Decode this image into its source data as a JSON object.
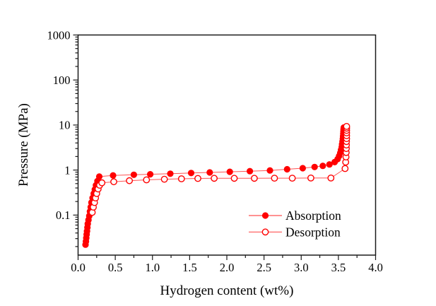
{
  "figure": {
    "background": "#ffffff"
  },
  "chart_data": {
    "type": "line",
    "subtype": "scatter-line pressure-composition isotherm",
    "title": "",
    "xlabel": "Hydrogen content (wt%)",
    "ylabel": "Pressure (MPa)",
    "x_scale": "linear",
    "y_scale": "log",
    "xlim": [
      0.0,
      4.0
    ],
    "ylim": [
      0.0129,
      1000
    ],
    "x_major_ticks": [
      0.0,
      0.5,
      1.0,
      1.5,
      2.0,
      2.5,
      3.0,
      3.5,
      4.0
    ],
    "x_tick_labels": [
      "0.0",
      "0.5",
      "1.0",
      "1.5",
      "2.0",
      "2.5",
      "3.0",
      "3.5",
      "4.0"
    ],
    "x_minor_step": 0.25,
    "y_major_ticks": [
      1000,
      100,
      10,
      1,
      0.1
    ],
    "y_tick_labels": [
      "1000",
      "100",
      "10",
      "1",
      "0.1"
    ],
    "grid": false,
    "legend_position": "inside-lower-right",
    "colors": {
      "series": "#ff0000",
      "line": "#ff5252",
      "axis": "#1a1a1a",
      "text": "#000000",
      "open_marker_fill": "#ffffff"
    },
    "series": [
      {
        "name": "Absorption",
        "marker": "filled-circle",
        "color": "#ff0000",
        "points": [
          [
            0.1,
            0.022
          ],
          [
            0.105,
            0.026
          ],
          [
            0.11,
            0.031
          ],
          [
            0.115,
            0.037
          ],
          [
            0.12,
            0.044
          ],
          [
            0.125,
            0.053
          ],
          [
            0.13,
            0.064
          ],
          [
            0.14,
            0.078
          ],
          [
            0.15,
            0.096
          ],
          [
            0.16,
            0.12
          ],
          [
            0.17,
            0.15
          ],
          [
            0.18,
            0.19
          ],
          [
            0.195,
            0.24
          ],
          [
            0.21,
            0.3
          ],
          [
            0.225,
            0.37
          ],
          [
            0.24,
            0.46
          ],
          [
            0.26,
            0.57
          ],
          [
            0.285,
            0.715
          ],
          [
            0.47,
            0.76
          ],
          [
            0.75,
            0.785
          ],
          [
            0.97,
            0.805
          ],
          [
            1.24,
            0.83
          ],
          [
            1.52,
            0.86
          ],
          [
            1.77,
            0.885
          ],
          [
            2.04,
            0.915
          ],
          [
            2.31,
            0.945
          ],
          [
            2.58,
            0.98
          ],
          [
            2.81,
            1.04
          ],
          [
            3.02,
            1.1
          ],
          [
            3.18,
            1.17
          ],
          [
            3.29,
            1.24
          ],
          [
            3.38,
            1.33
          ],
          [
            3.45,
            1.5
          ],
          [
            3.49,
            1.75
          ],
          [
            3.51,
            2.05
          ],
          [
            3.525,
            2.4
          ],
          [
            3.535,
            2.8
          ],
          [
            3.545,
            3.25
          ],
          [
            3.55,
            3.75
          ],
          [
            3.555,
            4.3
          ],
          [
            3.56,
            4.95
          ],
          [
            3.563,
            5.65
          ],
          [
            3.566,
            6.4
          ],
          [
            3.568,
            7.2
          ],
          [
            3.57,
            8.0
          ],
          [
            3.572,
            8.8
          ]
        ]
      },
      {
        "name": "Desorption",
        "marker": "open-circle",
        "color": "#ff0000",
        "points": [
          [
            0.19,
            0.115
          ],
          [
            0.205,
            0.15
          ],
          [
            0.22,
            0.19
          ],
          [
            0.235,
            0.24
          ],
          [
            0.25,
            0.3
          ],
          [
            0.27,
            0.38
          ],
          [
            0.29,
            0.46
          ],
          [
            0.32,
            0.52
          ],
          [
            0.48,
            0.55
          ],
          [
            0.69,
            0.58
          ],
          [
            0.92,
            0.605
          ],
          [
            1.16,
            0.625
          ],
          [
            1.39,
            0.64
          ],
          [
            1.61,
            0.65
          ],
          [
            1.83,
            0.655
          ],
          [
            2.1,
            0.655
          ],
          [
            2.37,
            0.655
          ],
          [
            2.64,
            0.66
          ],
          [
            2.88,
            0.66
          ],
          [
            3.13,
            0.665
          ],
          [
            3.4,
            0.665
          ],
          [
            3.59,
            1.08
          ],
          [
            3.598,
            1.5
          ],
          [
            3.602,
            1.95
          ],
          [
            3.605,
            2.45
          ],
          [
            3.607,
            3.0
          ],
          [
            3.608,
            3.6
          ],
          [
            3.609,
            4.3
          ],
          [
            3.61,
            5.0
          ],
          [
            3.61,
            5.8
          ],
          [
            3.61,
            6.7
          ],
          [
            3.61,
            7.6
          ],
          [
            3.61,
            8.5
          ],
          [
            3.61,
            9.3
          ]
        ]
      }
    ]
  }
}
